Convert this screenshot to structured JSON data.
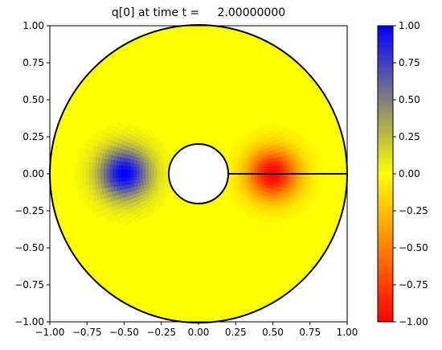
{
  "chart_data": {
    "type": "heatmap",
    "title": "q[0] at time t =     2.00000000",
    "xlabel": "",
    "ylabel": "",
    "xlim": [
      -1.0,
      1.0
    ],
    "ylim": [
      -1.0,
      1.0
    ],
    "xticks": [
      "−1.00",
      "−0.75",
      "−0.50",
      "−0.25",
      "0.00",
      "0.25",
      "0.50",
      "0.75",
      "1.00"
    ],
    "yticks": [
      "−1.00",
      "−0.75",
      "−0.50",
      "−0.25",
      "0.00",
      "0.25",
      "0.50",
      "0.75",
      "1.00"
    ],
    "xtick_values": [
      -1.0,
      -0.75,
      -0.5,
      -0.25,
      0.0,
      0.25,
      0.5,
      0.75,
      1.0
    ],
    "ytick_values": [
      -1.0,
      -0.75,
      -0.5,
      -0.25,
      0.0,
      0.25,
      0.5,
      0.75,
      1.0
    ],
    "domain": {
      "outer_radius": 1.0,
      "inner_radius": 0.2,
      "cut_line_x": [
        0.2,
        1.0
      ],
      "cut_line_y": 0.0
    },
    "field": {
      "background_value": 0.0,
      "blobs": [
        {
          "center_x": -0.5,
          "center_y": 0.0,
          "peak_value": 1.0,
          "width": 0.12
        },
        {
          "center_x": 0.5,
          "center_y": 0.0,
          "peak_value": -1.0,
          "width": 0.12
        }
      ]
    },
    "colorbar": {
      "range": [
        -1.0,
        1.0
      ],
      "ticks": [
        "−1.00",
        "−0.75",
        "−0.50",
        "−0.25",
        "0.00",
        "0.25",
        "0.50",
        "0.75",
        "1.00"
      ],
      "tick_values": [
        -1.0,
        -0.75,
        -0.5,
        -0.25,
        0.0,
        0.25,
        0.5,
        0.75,
        1.0
      ],
      "colors": {
        "min": "#ff0000",
        "mid": "#ffff00",
        "max": "#0000ff"
      }
    },
    "grid": false
  }
}
